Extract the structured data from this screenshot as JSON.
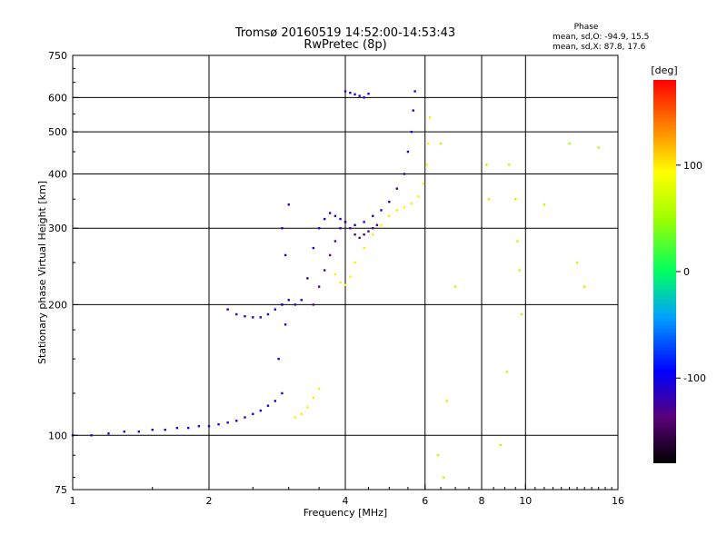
{
  "chart_data": {
    "type": "scatter",
    "title": "Tromsø 20160519 14:52:00-14:53:43",
    "subtitle": "RwPretec (8p)",
    "xlabel": "Frequency [MHz]",
    "ylabel": "Stationary phase Virtual Height [km]",
    "x_scale": "log",
    "y_scale": "log",
    "xlim": [
      1,
      16
    ],
    "ylim": [
      75,
      750
    ],
    "x_ticks": [
      1,
      2,
      4,
      6,
      8,
      10,
      16
    ],
    "y_ticks": [
      75,
      100,
      200,
      300,
      400,
      500,
      600,
      750
    ],
    "x_gridlines": [
      2,
      4,
      6,
      8,
      10
    ],
    "y_gridlines": [
      100,
      200,
      300,
      400,
      500,
      600
    ],
    "stats": {
      "heading": "Phase",
      "line_o": "mean, sd,O: -94.9, 15.5",
      "line_x": "mean, sd,X:  87.8, 17.6"
    },
    "colorbar": {
      "label": "[deg]",
      "range": [
        -180,
        180
      ],
      "ticks": [
        100,
        0,
        -100
      ],
      "colormap": "rainbow"
    },
    "series": [
      {
        "x": [
          1.0,
          1.1,
          1.2,
          1.3,
          1.4,
          1.5,
          1.6,
          1.7,
          1.8,
          1.9,
          2.0,
          2.1,
          2.2,
          2.3,
          2.4,
          2.5,
          2.6,
          2.7,
          2.8,
          2.9
        ],
        "y": [
          100,
          100,
          101,
          102,
          102,
          103,
          103,
          104,
          104,
          105,
          105,
          106,
          107,
          108,
          110,
          112,
          114,
          117,
          120,
          125
        ],
        "phase": -110
      },
      {
        "x": [
          2.2,
          2.3,
          2.4,
          2.5,
          2.6,
          2.7,
          2.8,
          2.9,
          3.0,
          3.1,
          3.2,
          3.3,
          3.4,
          3.5,
          3.6,
          3.7,
          3.8,
          3.9,
          4.0,
          4.2,
          4.4,
          4.6,
          4.8,
          5.0,
          5.2,
          5.4,
          5.5,
          5.6,
          5.65,
          5.7
        ],
        "y": [
          195,
          190,
          188,
          187,
          187,
          190,
          195,
          200,
          205,
          200,
          205,
          230,
          270,
          300,
          315,
          325,
          320,
          315,
          310,
          305,
          310,
          320,
          330,
          345,
          370,
          400,
          450,
          500,
          560,
          620
        ],
        "phase": -110
      },
      {
        "x": [
          2.85,
          2.9,
          2.95,
          3.0,
          2.9,
          2.95
        ],
        "y": [
          150,
          200,
          260,
          340,
          300,
          180
        ],
        "phase": -105
      },
      {
        "x": [
          3.4,
          3.5,
          3.6,
          3.7,
          3.8,
          3.9,
          4.0,
          4.1,
          4.2,
          4.3,
          4.4,
          4.5,
          4.6,
          4.7
        ],
        "y": [
          200,
          220,
          240,
          260,
          280,
          300,
          310,
          300,
          290,
          285,
          290,
          295,
          300,
          305
        ],
        "phase": -130
      },
      {
        "x": [
          3.1,
          3.2,
          3.3,
          3.4,
          3.5
        ],
        "y": [
          110,
          112,
          116,
          122,
          128
        ],
        "phase": 100
      },
      {
        "x": [
          3.8,
          3.9,
          4.0,
          4.1,
          4.2,
          4.4,
          4.6,
          4.8,
          5.0,
          5.2,
          5.4,
          5.6,
          5.8,
          5.95,
          6.05,
          6.1,
          6.15
        ],
        "y": [
          235,
          225,
          222,
          232,
          250,
          270,
          290,
          305,
          320,
          330,
          335,
          342,
          355,
          380,
          420,
          470,
          540
        ],
        "phase": 100
      },
      {
        "x": [
          4.0,
          4.1,
          4.2,
          4.3,
          4.4,
          4.5
        ],
        "y": [
          620,
          615,
          610,
          605,
          600,
          612
        ],
        "phase": -110
      },
      {
        "x": [
          6.5,
          7.0,
          8.2,
          8.3,
          9.2,
          9.5,
          9.6,
          9.7,
          9.8,
          11.0,
          12.5,
          13.0,
          13.5,
          14.5,
          6.7,
          6.4,
          6.6,
          8.8,
          9.1
        ],
        "y": [
          470,
          220,
          420,
          350,
          420,
          350,
          280,
          240,
          190,
          340,
          470,
          250,
          220,
          460,
          120,
          90,
          80,
          95,
          140
        ],
        "phase": 60
      }
    ]
  }
}
